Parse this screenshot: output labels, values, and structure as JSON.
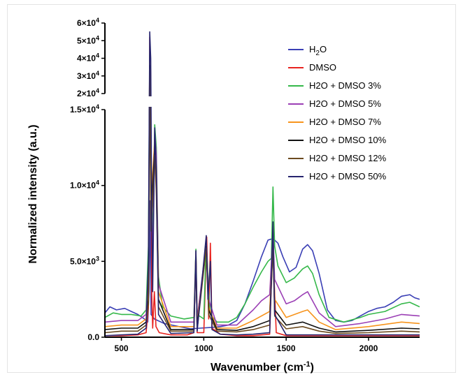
{
  "chart_data": {
    "type": "line",
    "title": "",
    "xlabel": "Wavenumber (cm",
    "xlabel_sup": "-1",
    "xlabel_end": ")",
    "ylabel": "Normalized intensity (a.u.)",
    "x_range": [
      400,
      2310
    ],
    "x_ticks": [
      500,
      1000,
      1500,
      2000
    ],
    "x_tick_labels": [
      "500",
      "1000",
      "1500",
      "2000"
    ],
    "y_axis_broken": true,
    "y_lower_range": [
      0,
      15000
    ],
    "y_upper_range": [
      20000,
      60000
    ],
    "y_lower_ticks": [
      {
        "value": 0,
        "mant": "0.0",
        "exp": ""
      },
      {
        "value": 5000,
        "mant": "5.0×10",
        "exp": "3"
      },
      {
        "value": 10000,
        "mant": "1.0×10",
        "exp": "4"
      },
      {
        "value": 15000,
        "mant": "1.5×10",
        "exp": "4"
      }
    ],
    "y_upper_ticks": [
      {
        "value": 20000,
        "mant": "2×10",
        "exp": "4"
      },
      {
        "value": 30000,
        "mant": "3×10",
        "exp": "4"
      },
      {
        "value": 40000,
        "mant": "4×10",
        "exp": "4"
      },
      {
        "value": 50000,
        "mant": "5×10",
        "exp": "4"
      },
      {
        "value": 60000,
        "mant": "6×10",
        "exp": "4"
      }
    ],
    "legend_position": "top-right",
    "grid": false,
    "series": [
      {
        "name": "H2O",
        "name_base": "H",
        "name_sub": "2",
        "name_end": "O",
        "color": "#3a3fb5",
        "points": [
          [
            400,
            1600
          ],
          [
            430,
            2000
          ],
          [
            470,
            1800
          ],
          [
            520,
            1900
          ],
          [
            560,
            1700
          ],
          [
            600,
            1500
          ],
          [
            640,
            1200
          ],
          [
            660,
            1000
          ],
          [
            668,
            3000
          ],
          [
            675,
            9000
          ],
          [
            680,
            1500
          ],
          [
            700,
            1200
          ],
          [
            760,
            900
          ],
          [
            850,
            700
          ],
          [
            920,
            550
          ],
          [
            980,
            600
          ],
          [
            1050,
            650
          ],
          [
            1100,
            700
          ],
          [
            1150,
            800
          ],
          [
            1200,
            1100
          ],
          [
            1250,
            2200
          ],
          [
            1300,
            3700
          ],
          [
            1350,
            5300
          ],
          [
            1390,
            6400
          ],
          [
            1420,
            6500
          ],
          [
            1450,
            6200
          ],
          [
            1480,
            5300
          ],
          [
            1520,
            4300
          ],
          [
            1560,
            4600
          ],
          [
            1600,
            5800
          ],
          [
            1630,
            6100
          ],
          [
            1660,
            5700
          ],
          [
            1700,
            4200
          ],
          [
            1750,
            1800
          ],
          [
            1800,
            1100
          ],
          [
            1850,
            1000
          ],
          [
            1900,
            1100
          ],
          [
            1950,
            1400
          ],
          [
            2000,
            1700
          ],
          [
            2050,
            1900
          ],
          [
            2100,
            2000
          ],
          [
            2150,
            2300
          ],
          [
            2200,
            2700
          ],
          [
            2250,
            2800
          ],
          [
            2280,
            2600
          ],
          [
            2310,
            2500
          ]
        ]
      },
      {
        "name": "DMSO",
        "color": "#e8231f",
        "points": [
          [
            400,
            100
          ],
          [
            500,
            100
          ],
          [
            600,
            150
          ],
          [
            650,
            300
          ],
          [
            664,
            2000
          ],
          [
            672,
            52000
          ],
          [
            678,
            30000
          ],
          [
            684,
            3000
          ],
          [
            690,
            600
          ],
          [
            700,
            3000
          ],
          [
            710,
            700
          ],
          [
            730,
            300
          ],
          [
            800,
            150
          ],
          [
            900,
            150
          ],
          [
            940,
            300
          ],
          [
            952,
            5700
          ],
          [
            960,
            300
          ],
          [
            1000,
            300
          ],
          [
            1018,
            6600
          ],
          [
            1030,
            1200
          ],
          [
            1040,
            6200
          ],
          [
            1050,
            600
          ],
          [
            1100,
            200
          ],
          [
            1200,
            100
          ],
          [
            1300,
            100
          ],
          [
            1400,
            200
          ],
          [
            1412,
            4000
          ],
          [
            1420,
            7300
          ],
          [
            1428,
            3500
          ],
          [
            1440,
            300
          ],
          [
            1500,
            100
          ],
          [
            1600,
            100
          ],
          [
            1800,
            100
          ],
          [
            2000,
            100
          ],
          [
            2310,
            100
          ]
        ]
      },
      {
        "name": "H2O + DMSO 3%",
        "color": "#35b84a",
        "points": [
          [
            400,
            1300
          ],
          [
            450,
            1600
          ],
          [
            500,
            1500
          ],
          [
            560,
            1500
          ],
          [
            620,
            1400
          ],
          [
            650,
            1800
          ],
          [
            664,
            6000
          ],
          [
            672,
            42000
          ],
          [
            680,
            12000
          ],
          [
            690,
            6000
          ],
          [
            702,
            14000
          ],
          [
            712,
            12500
          ],
          [
            725,
            4000
          ],
          [
            750,
            2000
          ],
          [
            800,
            1400
          ],
          [
            880,
            1200
          ],
          [
            940,
            1300
          ],
          [
            952,
            5800
          ],
          [
            960,
            1500
          ],
          [
            1000,
            1200
          ],
          [
            1015,
            6300
          ],
          [
            1030,
            3000
          ],
          [
            1040,
            1500
          ],
          [
            1080,
            1000
          ],
          [
            1150,
            1000
          ],
          [
            1200,
            1300
          ],
          [
            1250,
            2200
          ],
          [
            1300,
            3300
          ],
          [
            1350,
            4300
          ],
          [
            1390,
            5000
          ],
          [
            1410,
            5200
          ],
          [
            1420,
            9900
          ],
          [
            1430,
            6000
          ],
          [
            1450,
            4700
          ],
          [
            1500,
            3600
          ],
          [
            1550,
            3900
          ],
          [
            1600,
            4500
          ],
          [
            1630,
            4700
          ],
          [
            1660,
            4200
          ],
          [
            1700,
            2800
          ],
          [
            1760,
            1300
          ],
          [
            1850,
            1000
          ],
          [
            1950,
            1300
          ],
          [
            2000,
            1500
          ],
          [
            2100,
            1700
          ],
          [
            2200,
            2200
          ],
          [
            2250,
            2300
          ],
          [
            2310,
            2000
          ]
        ]
      },
      {
        "name": "H2O + DMSO 5%",
        "color": "#9b3fb5",
        "points": [
          [
            400,
            1000
          ],
          [
            500,
            1100
          ],
          [
            600,
            1100
          ],
          [
            650,
            1500
          ],
          [
            664,
            4000
          ],
          [
            672,
            40000
          ],
          [
            680,
            10000
          ],
          [
            690,
            5000
          ],
          [
            702,
            13500
          ],
          [
            712,
            12000
          ],
          [
            725,
            3500
          ],
          [
            800,
            1000
          ],
          [
            940,
            1000
          ],
          [
            952,
            5600
          ],
          [
            960,
            1200
          ],
          [
            1015,
            6200
          ],
          [
            1030,
            2500
          ],
          [
            1080,
            800
          ],
          [
            1200,
            800
          ],
          [
            1300,
            1800
          ],
          [
            1350,
            2400
          ],
          [
            1400,
            2800
          ],
          [
            1420,
            7000
          ],
          [
            1430,
            3800
          ],
          [
            1500,
            2200
          ],
          [
            1550,
            2400
          ],
          [
            1600,
            2800
          ],
          [
            1630,
            3000
          ],
          [
            1700,
            1600
          ],
          [
            1800,
            700
          ],
          [
            1950,
            900
          ],
          [
            2100,
            1200
          ],
          [
            2200,
            1500
          ],
          [
            2310,
            1400
          ]
        ]
      },
      {
        "name": "H2O + DMSO 7%",
        "color": "#f7941d",
        "points": [
          [
            400,
            700
          ],
          [
            500,
            800
          ],
          [
            600,
            800
          ],
          [
            650,
            1200
          ],
          [
            664,
            3000
          ],
          [
            672,
            38000
          ],
          [
            680,
            9000
          ],
          [
            702,
            13000
          ],
          [
            712,
            11000
          ],
          [
            725,
            3000
          ],
          [
            800,
            700
          ],
          [
            940,
            700
          ],
          [
            952,
            5500
          ],
          [
            960,
            900
          ],
          [
            1015,
            6100
          ],
          [
            1030,
            2000
          ],
          [
            1080,
            600
          ],
          [
            1200,
            600
          ],
          [
            1300,
            1100
          ],
          [
            1400,
            1700
          ],
          [
            1420,
            6500
          ],
          [
            1430,
            2500
          ],
          [
            1500,
            1300
          ],
          [
            1600,
            1700
          ],
          [
            1630,
            1800
          ],
          [
            1700,
            1000
          ],
          [
            1800,
            500
          ],
          [
            2000,
            700
          ],
          [
            2200,
            1000
          ],
          [
            2310,
            900
          ]
        ]
      },
      {
        "name": "H2O + DMSO 10%",
        "color": "#111111",
        "points": [
          [
            400,
            500
          ],
          [
            500,
            600
          ],
          [
            600,
            600
          ],
          [
            650,
            1000
          ],
          [
            664,
            2500
          ],
          [
            672,
            36000
          ],
          [
            680,
            8000
          ],
          [
            702,
            12500
          ],
          [
            712,
            10000
          ],
          [
            725,
            2500
          ],
          [
            800,
            500
          ],
          [
            940,
            500
          ],
          [
            952,
            5300
          ],
          [
            960,
            700
          ],
          [
            1015,
            6000
          ],
          [
            1030,
            1800
          ],
          [
            1080,
            500
          ],
          [
            1200,
            450
          ],
          [
            1300,
            700
          ],
          [
            1400,
            1100
          ],
          [
            1420,
            6200
          ],
          [
            1430,
            1800
          ],
          [
            1500,
            800
          ],
          [
            1600,
            1000
          ],
          [
            1700,
            600
          ],
          [
            1800,
            350
          ],
          [
            2000,
            450
          ],
          [
            2200,
            600
          ],
          [
            2310,
            550
          ]
        ]
      },
      {
        "name": "H2O + DMSO 12%",
        "color": "#6b4a1f",
        "points": [
          [
            400,
            300
          ],
          [
            500,
            400
          ],
          [
            600,
            400
          ],
          [
            650,
            800
          ],
          [
            664,
            2200
          ],
          [
            672,
            34000
          ],
          [
            680,
            7000
          ],
          [
            702,
            12000
          ],
          [
            712,
            9500
          ],
          [
            725,
            2000
          ],
          [
            800,
            400
          ],
          [
            940,
            400
          ],
          [
            952,
            5200
          ],
          [
            960,
            500
          ],
          [
            1015,
            5900
          ],
          [
            1030,
            1500
          ],
          [
            1080,
            400
          ],
          [
            1200,
            350
          ],
          [
            1300,
            500
          ],
          [
            1400,
            800
          ],
          [
            1420,
            6000
          ],
          [
            1430,
            1400
          ],
          [
            1500,
            550
          ],
          [
            1600,
            700
          ],
          [
            1700,
            400
          ],
          [
            1800,
            250
          ],
          [
            2000,
            300
          ],
          [
            2200,
            400
          ],
          [
            2310,
            350
          ]
        ]
      },
      {
        "name": "H2O + DMSO 50%",
        "color": "#26246e",
        "points": [
          [
            400,
            100
          ],
          [
            500,
            150
          ],
          [
            600,
            200
          ],
          [
            650,
            600
          ],
          [
            664,
            5000
          ],
          [
            672,
            55000
          ],
          [
            678,
            40000
          ],
          [
            684,
            8000
          ],
          [
            690,
            3000
          ],
          [
            702,
            13800
          ],
          [
            712,
            11000
          ],
          [
            725,
            1500
          ],
          [
            800,
            250
          ],
          [
            940,
            300
          ],
          [
            952,
            5700
          ],
          [
            960,
            400
          ],
          [
            1015,
            6700
          ],
          [
            1025,
            2500
          ],
          [
            1040,
            5000
          ],
          [
            1050,
            500
          ],
          [
            1100,
            200
          ],
          [
            1200,
            150
          ],
          [
            1300,
            200
          ],
          [
            1400,
            300
          ],
          [
            1420,
            7600
          ],
          [
            1430,
            1500
          ],
          [
            1500,
            150
          ],
          [
            1700,
            150
          ],
          [
            2000,
            150
          ],
          [
            2310,
            150
          ]
        ]
      }
    ]
  }
}
